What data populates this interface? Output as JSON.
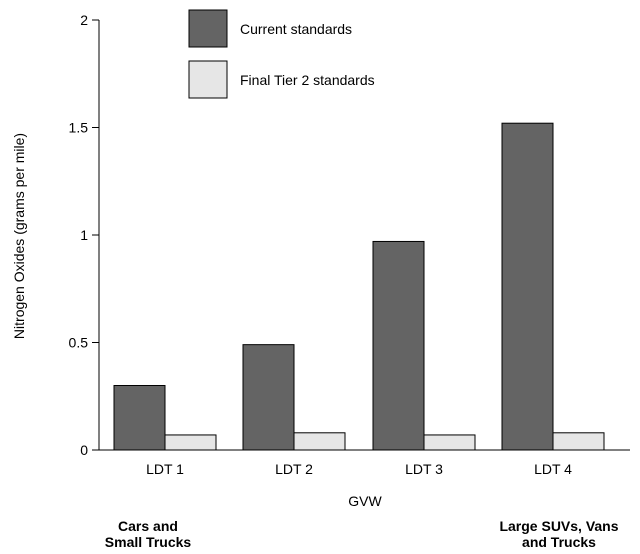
{
  "chart_data": {
    "type": "bar",
    "categories": [
      "LDT 1",
      "LDT 2",
      "LDT 3",
      "LDT 4"
    ],
    "series": [
      {
        "name": "Current standards",
        "values": [
          0.3,
          0.49,
          0.97,
          1.52
        ],
        "color": "#646464"
      },
      {
        "name": "Final Tier 2 standards",
        "values": [
          0.07,
          0.08,
          0.07,
          0.08
        ],
        "color": "#e6e6e6"
      }
    ],
    "xlabel": "GVW",
    "ylabel": "Nitrogen Oxides (grams per mile)",
    "ylim": [
      0,
      2
    ],
    "yticks": [
      {
        "value": 0,
        "label": "0"
      },
      {
        "value": 0.5,
        "label": "0.5"
      },
      {
        "value": 1,
        "label": "1"
      },
      {
        "value": 1.5,
        "label": "1.5"
      },
      {
        "value": 2,
        "label": "2"
      }
    ],
    "legend": {
      "placement": "top-left"
    },
    "grid": false,
    "annotations": {
      "left": [
        "Cars and",
        "Small Trucks"
      ],
      "right": [
        "Large SUVs, Vans",
        "and Trucks"
      ]
    }
  }
}
